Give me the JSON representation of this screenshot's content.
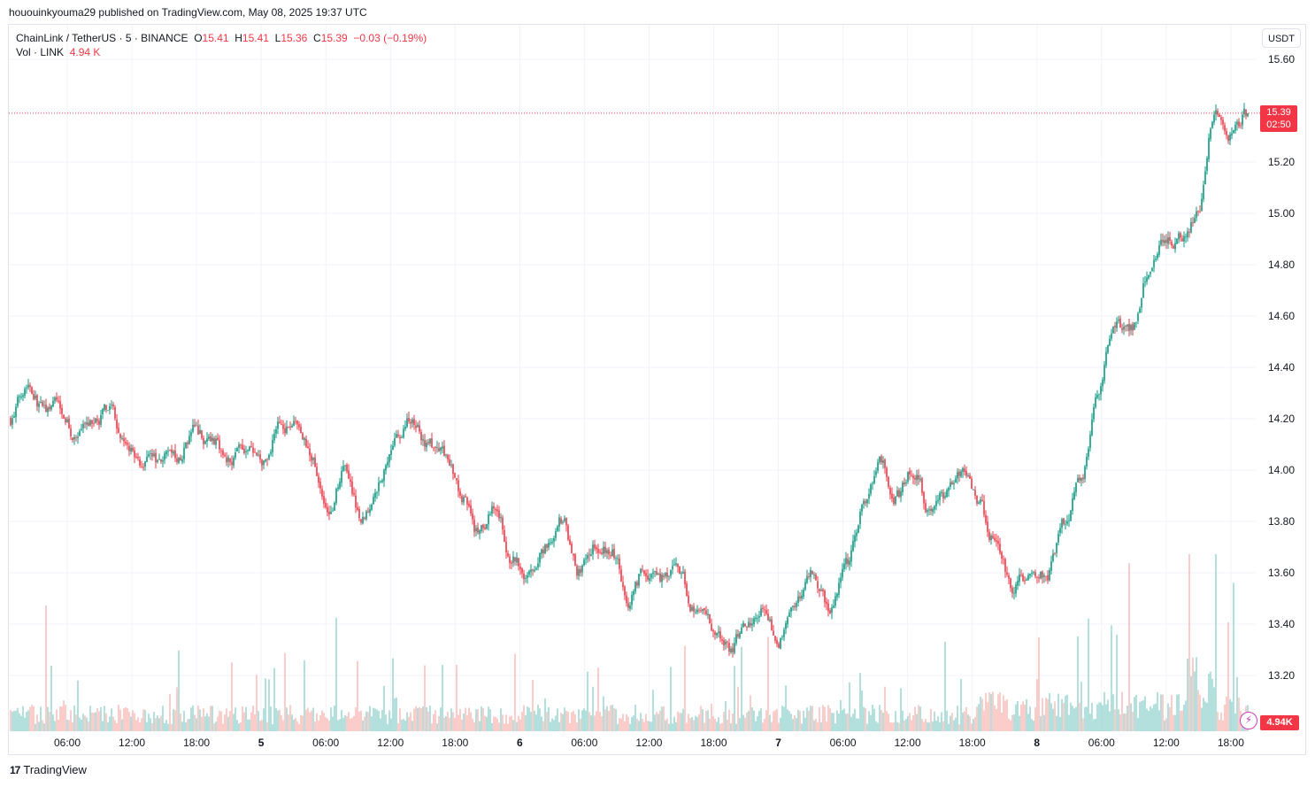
{
  "header": {
    "publish_line": "hououinkyouma29 published on TradingView.com, May 08, 2025 19:37 UTC"
  },
  "legend": {
    "symbol": "ChainLink / TetherUS · 5 · BINANCE",
    "open_label": "O",
    "open": "15.41",
    "high_label": "H",
    "high": "15.41",
    "low_label": "L",
    "low": "15.36",
    "close_label": "C",
    "close": "15.39",
    "change": "−0.03 (−0.19%)",
    "volume_label": "Vol · LINK",
    "volume_value": "4.94 K"
  },
  "currency_button": "USDT",
  "last_price_tag": {
    "price": "15.39",
    "countdown": "02:50"
  },
  "volume_tag": "4.94K",
  "flash_icon": "lightning-icon",
  "brand": {
    "logo_text": "17",
    "name": "TradingView"
  },
  "colors": {
    "up": "#089981",
    "down": "#f23645",
    "up_volume": "#80cbc4",
    "down_volume": "#f7a9a7",
    "grid": "#f0f3fa"
  },
  "chart_data": {
    "type": "candlestick",
    "symbol": "LINK/USDT",
    "interval": "5",
    "exchange": "BINANCE",
    "y_axis": {
      "ticks": [
        "15.60",
        "15.20",
        "15.00",
        "14.80",
        "14.60",
        "14.40",
        "14.20",
        "14.00",
        "13.80",
        "13.60",
        "13.40",
        "13.20"
      ],
      "ylim": [
        13.15,
        15.62
      ]
    },
    "x_axis": {
      "ticks": [
        "06:00",
        "12:00",
        "18:00",
        "5",
        "06:00",
        "12:00",
        "18:00",
        "6",
        "06:00",
        "12:00",
        "18:00",
        "7",
        "06:00",
        "12:00",
        "18:00",
        "8",
        "06:00",
        "12:00",
        "18:00"
      ]
    },
    "last_price": 15.39,
    "price_path": [
      [
        0,
        14.2
      ],
      [
        1,
        14.35
      ],
      [
        2,
        14.23
      ],
      [
        3,
        14.25
      ],
      [
        4,
        14.12
      ],
      [
        5,
        14.2
      ],
      [
        6,
        14.23
      ],
      [
        7,
        14.08
      ],
      [
        8,
        14.02
      ],
      [
        9,
        14.04
      ],
      [
        10,
        14.05
      ],
      [
        11,
        14.15
      ],
      [
        12,
        14.12
      ],
      [
        13,
        14.05
      ],
      [
        14,
        14.1
      ],
      [
        15,
        14.02
      ],
      [
        16,
        14.17
      ],
      [
        17,
        14.18
      ],
      [
        18,
        14.05
      ],
      [
        19,
        13.85
      ],
      [
        20,
        14.0
      ],
      [
        21,
        13.82
      ],
      [
        22,
        13.95
      ],
      [
        23,
        14.1
      ],
      [
        24,
        14.2
      ],
      [
        25,
        14.1
      ],
      [
        26,
        14.05
      ],
      [
        27,
        13.9
      ],
      [
        28,
        13.75
      ],
      [
        29,
        13.85
      ],
      [
        30,
        13.65
      ],
      [
        31,
        13.6
      ],
      [
        32,
        13.7
      ],
      [
        33,
        13.8
      ],
      [
        34,
        13.6
      ],
      [
        35,
        13.72
      ],
      [
        36,
        13.68
      ],
      [
        37,
        13.5
      ],
      [
        38,
        13.62
      ],
      [
        39,
        13.58
      ],
      [
        40,
        13.6
      ],
      [
        41,
        13.45
      ],
      [
        42,
        13.38
      ],
      [
        43,
        13.3
      ],
      [
        44,
        13.4
      ],
      [
        45,
        13.45
      ],
      [
        46,
        13.35
      ],
      [
        47,
        13.5
      ],
      [
        48,
        13.6
      ],
      [
        49,
        13.45
      ],
      [
        50,
        13.65
      ],
      [
        51,
        13.85
      ],
      [
        52,
        14.05
      ],
      [
        53,
        13.9
      ],
      [
        54,
        14.0
      ],
      [
        55,
        13.85
      ],
      [
        56,
        13.9
      ],
      [
        57,
        14.0
      ],
      [
        58,
        13.85
      ],
      [
        59,
        13.7
      ],
      [
        60,
        13.55
      ],
      [
        61,
        13.6
      ],
      [
        62,
        13.6
      ],
      [
        63,
        13.8
      ],
      [
        64,
        13.95
      ],
      [
        65,
        14.3
      ],
      [
        66,
        14.55
      ],
      [
        67,
        14.55
      ],
      [
        68,
        14.75
      ],
      [
        69,
        14.92
      ],
      [
        70,
        14.9
      ],
      [
        71,
        15.0
      ],
      [
        72,
        15.4
      ],
      [
        73,
        15.3
      ],
      [
        74,
        15.39
      ]
    ],
    "volume_units": "LINK"
  }
}
